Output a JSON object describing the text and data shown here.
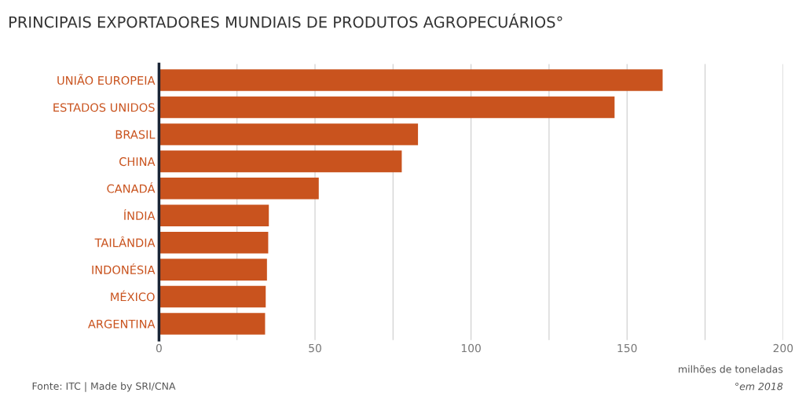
{
  "chart_data": {
    "type": "bar",
    "orientation": "horizontal",
    "title": "PRINCIPAIS EXPORTADORES MUNDIAIS DE PRODUTOS AGROPECUÁRIOS°",
    "xlabel": "milhões de toneladas",
    "categories": [
      "UNIÃO EUROPEIA",
      "ESTADOS UNIDOS",
      "BRASIL",
      "CHINA",
      "CANADÁ",
      "ÍNDIA",
      "TAILÂNDIA",
      "INDONÉSIA",
      "MÉXICO",
      "ARGENTINA"
    ],
    "values": [
      161.4,
      146,
      83,
      77.8,
      51.2,
      35.2,
      35.0,
      34.6,
      34.2,
      34.0
    ],
    "color": "#c9531e",
    "xlim": [
      0,
      200
    ],
    "xticks": [
      0,
      {
        "value": 25,
        "label": null
      },
      50,
      {
        "value": 75,
        "label": null
      },
      100,
      {
        "value": 125,
        "label": null
      },
      150,
      {
        "value": 175,
        "label": null
      },
      200
    ],
    "grid": "x",
    "annotations": [
      "°em 2018",
      "Fonte: ITC | Made by SRI/CNA"
    ]
  }
}
